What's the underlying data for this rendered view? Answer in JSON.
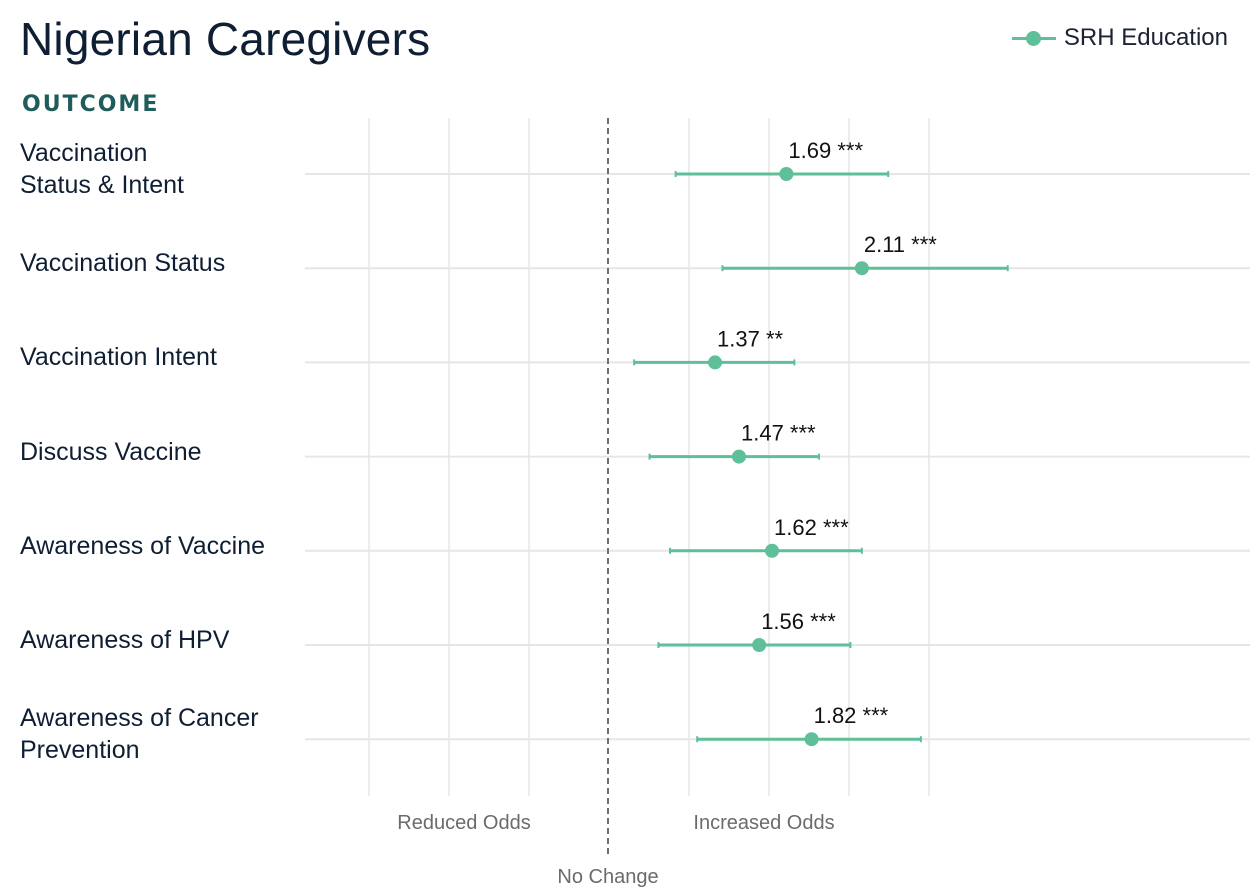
{
  "title": "Nigerian Caregivers",
  "legend": {
    "label": "SRH Education",
    "color": "#5fbf98"
  },
  "outcome_header": "OUTCOME",
  "chart_data": {
    "type": "forest",
    "series": [
      {
        "name": "SRH Education",
        "color": "#5fbf98",
        "points": [
          {
            "label_lines": [
              "Vaccination",
              "Status & Intent"
            ],
            "or": 1.69,
            "lo": 1.22,
            "hi": 2.28,
            "annotation": "1.69 ***"
          },
          {
            "label_lines": [
              "Vaccination Status"
            ],
            "or": 2.11,
            "lo": 1.4,
            "hi": 3.24,
            "annotation": "2.11 ***"
          },
          {
            "label_lines": [
              "Vaccination Intent"
            ],
            "or": 1.37,
            "lo": 1.08,
            "hi": 1.73,
            "annotation": "1.37 **"
          },
          {
            "label_lines": [
              "Discuss Vaccine"
            ],
            "or": 1.47,
            "lo": 1.13,
            "hi": 1.86,
            "annotation": "1.47 ***"
          },
          {
            "label_lines": [
              "Awareness of Vaccine"
            ],
            "or": 1.62,
            "lo": 1.2,
            "hi": 2.11,
            "annotation": "1.62 ***"
          },
          {
            "label_lines": [
              "Awareness of HPV"
            ],
            "or": 1.56,
            "lo": 1.16,
            "hi": 2.04,
            "annotation": "1.56 ***"
          },
          {
            "label_lines": [
              "Awareness of Cancer",
              "Prevention"
            ],
            "or": 1.82,
            "lo": 1.3,
            "hi": 2.51,
            "annotation": "1.82 ***"
          }
        ]
      }
    ],
    "x_scale": "log",
    "xlim": [
      0.4,
      4.6
    ],
    "reference_value": 1,
    "x_annotations": {
      "left": "Reduced Odds",
      "right": "Increased Odds",
      "center": "No Change"
    },
    "grid": true
  }
}
